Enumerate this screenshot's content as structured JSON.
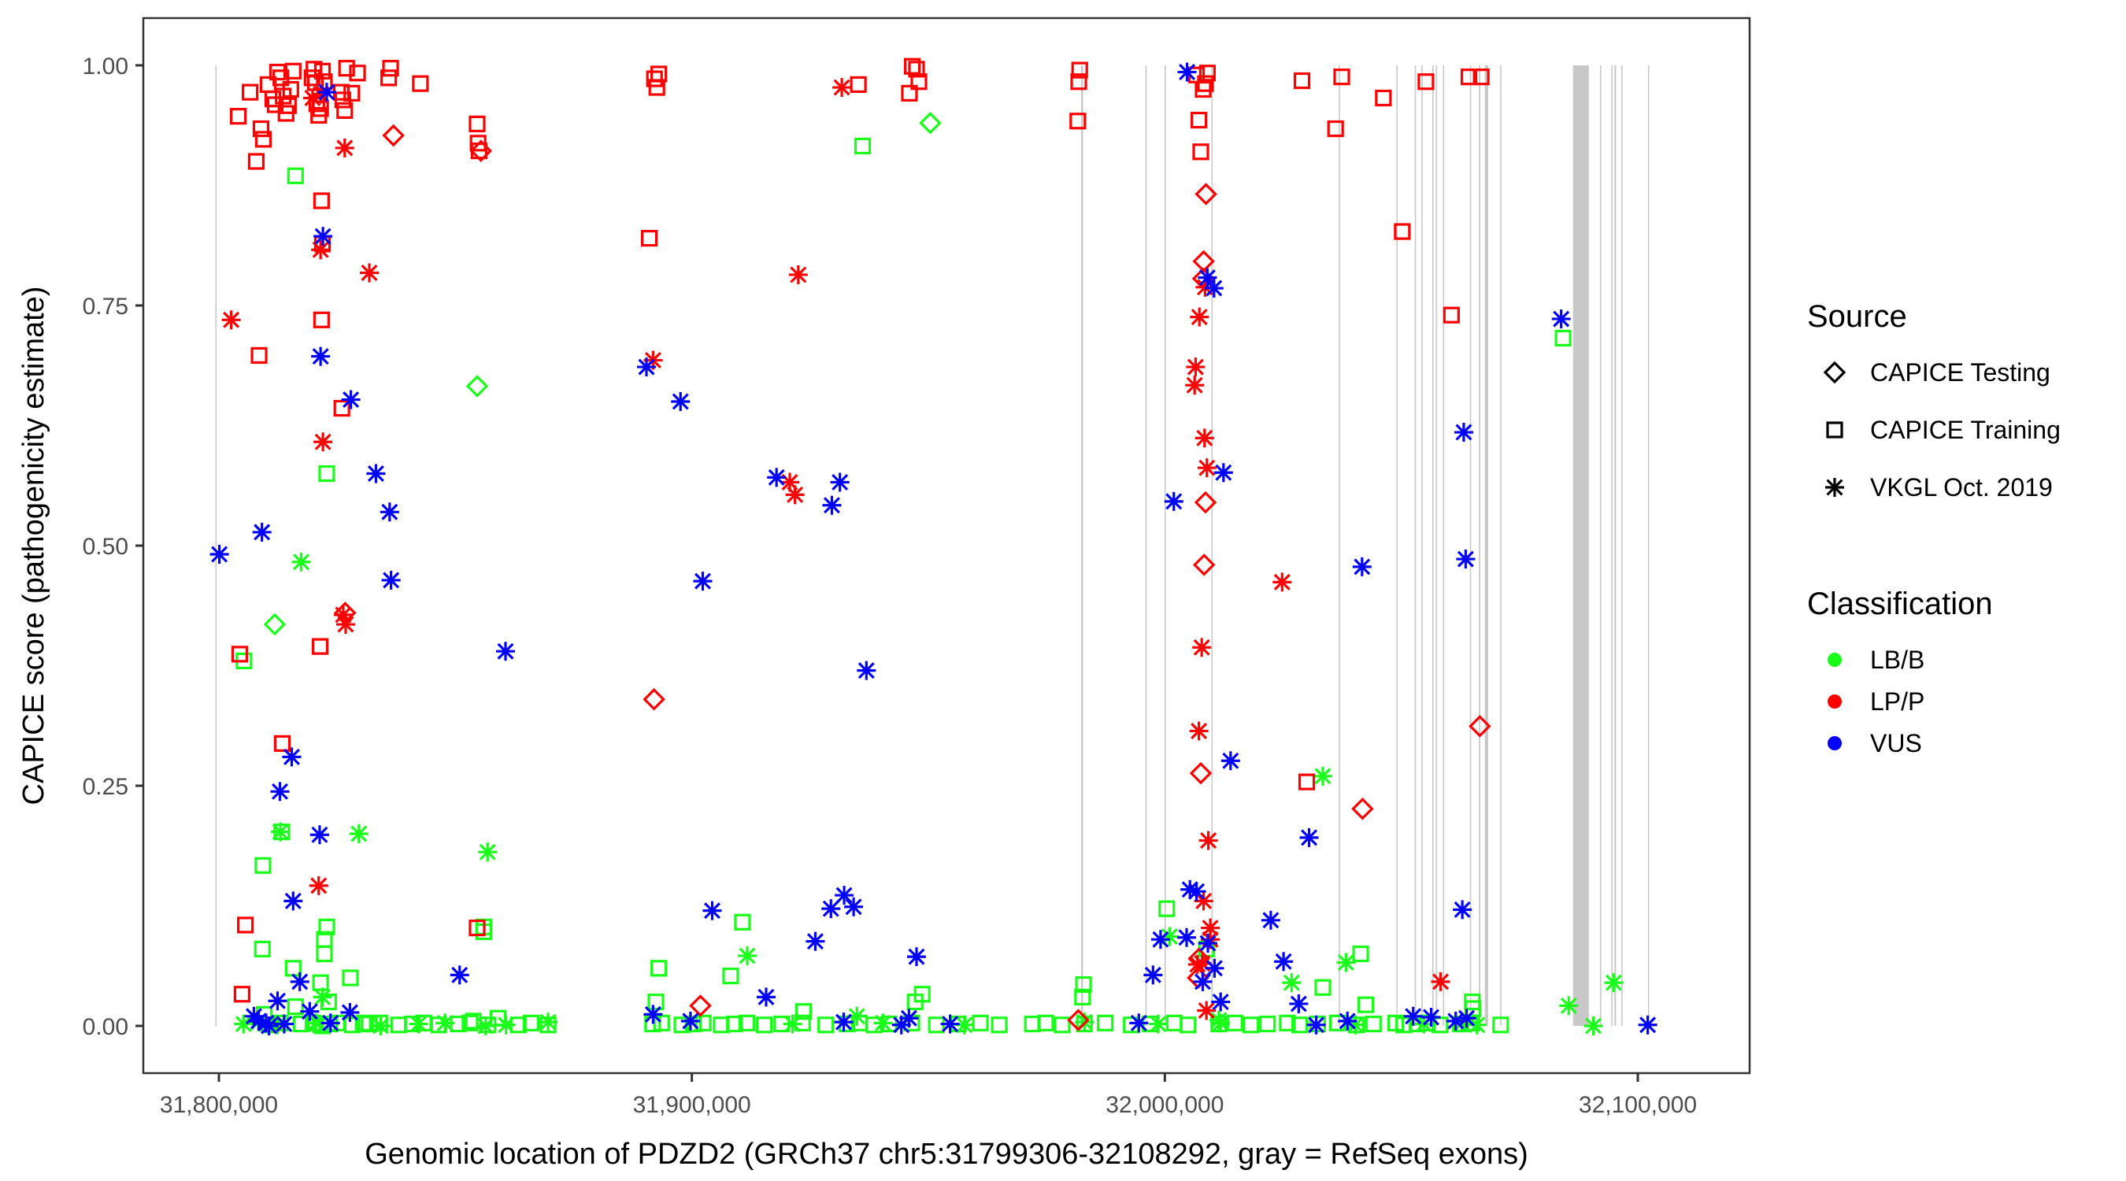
{
  "chart_data": {
    "type": "scatter",
    "title": "",
    "xlabel": "Genomic location of PDZD2 (GRCh37 chr5:31799306-32108292, gray = RefSeq exons)",
    "ylabel": "CAPICE score (pathogenicity estimate)",
    "xlim": [
      31784000,
      32125000
    ],
    "ylim": [
      -0.0975,
      1.0975
    ],
    "grid": false,
    "x_ticks": [
      31800000,
      31900000,
      32000000,
      32100000
    ],
    "x_tick_labels": [
      "31,800,000",
      "31,900,000",
      "32,000,000",
      "32,100,000"
    ],
    "y_ticks": [
      0,
      0.25,
      0.5,
      0.75,
      1.0
    ],
    "y_tick_labels": [
      "0.00",
      "0.25",
      "0.50",
      "0.75",
      "1.00"
    ],
    "exon_range": [
      31799306,
      32108292
    ],
    "exons": [
      [
        31799250,
        31799450
      ],
      [
        31982300,
        31982700
      ],
      [
        31995900,
        31996100
      ],
      [
        31999950,
        32000200
      ],
      [
        32009850,
        32010100
      ],
      [
        32036750,
        32036950
      ],
      [
        32048950,
        32049150
      ],
      [
        32052850,
        32053050
      ],
      [
        32054250,
        32054450
      ],
      [
        32056550,
        32056800
      ],
      [
        32057300,
        32057500
      ],
      [
        32058800,
        32059000
      ],
      [
        32064500,
        32064700
      ],
      [
        32066400,
        32066700
      ],
      [
        32067650,
        32068350
      ],
      [
        32070900,
        32071100
      ],
      [
        32086300,
        32089650
      ],
      [
        32092000,
        32092200
      ],
      [
        32094400,
        32094600
      ],
      [
        32095050,
        32095400
      ],
      [
        32096500,
        32096700
      ],
      [
        32102150,
        32102400
      ]
    ],
    "legend": {
      "placement": "right",
      "source_title": "Source",
      "source_entries": [
        {
          "label": "CAPICE Testing",
          "shape": "diamond"
        },
        {
          "label": "CAPICE Training",
          "shape": "square"
        },
        {
          "label": "VKGL Oct. 2019",
          "shape": "asterisk"
        }
      ],
      "class_title": "Classification",
      "class_entries": [
        {
          "label": "LB/B",
          "color": "#1aff1a"
        },
        {
          "label": "LP/P",
          "color": "#ff0000"
        },
        {
          "label": "VUS",
          "color": "#0000ff"
        }
      ]
    },
    "series": [
      {
        "name": "LP/P CAPICE Training",
        "class": "LP/P",
        "shape": "square",
        "color": "#ff0000",
        "x": [
          31804100,
          31806600,
          31808900,
          31809400,
          31810400,
          31811400,
          31811900,
          31812400,
          31813100,
          31813600,
          31814200,
          31814700,
          31815200,
          31815700,
          31819700,
          31820100,
          31820400,
          31820700,
          31821100,
          31821500,
          31821900,
          31822300,
          31825900,
          31826200,
          31826600,
          31827000,
          31828100,
          31829300,
          31835900,
          31836300,
          31842600,
          31854600,
          31854800,
          31855000,
          31891000,
          31892100,
          31892600,
          31893000,
          31935200,
          31946000,
          31946600,
          31947500,
          31948000,
          31981600,
          31981800,
          31982000,
          32006700,
          32007200,
          32007600,
          32008100,
          32008600,
          32009000,
          32029000,
          32036100,
          32037400,
          32046200,
          32050200,
          32055200,
          32060600,
          32064300,
          32066900,
          32030000,
          31808500,
          31804400,
          31826000,
          31821900,
          31821700,
          31805600,
          31821700,
          31807900,
          31813400,
          31821400,
          31804900,
          31854600
        ],
        "y": [
          0.947,
          0.972,
          0.934,
          0.923,
          0.98,
          0.965,
          0.959,
          0.993,
          0.987,
          0.968,
          0.95,
          0.958,
          0.975,
          0.994,
          0.987,
          0.996,
          0.982,
          0.96,
          0.948,
          0.955,
          0.994,
          0.983,
          0.972,
          0.964,
          0.953,
          0.997,
          0.971,
          0.992,
          0.987,
          0.997,
          0.981,
          0.939,
          0.919,
          0.911,
          0.82,
          0.986,
          0.977,
          0.991,
          0.98,
          0.971,
          0.999,
          0.996,
          0.983,
          0.942,
          0.983,
          0.995,
          0.99,
          0.943,
          0.91,
          0.975,
          0.981,
          0.992,
          0.984,
          0.934,
          0.988,
          0.966,
          0.827,
          0.983,
          0.74,
          0.988,
          0.988,
          0.254,
          0.698,
          0.387,
          0.643,
          0.814,
          0.735,
          0.105,
          0.859,
          0.9,
          0.294,
          0.395,
          0.033,
          0.102
        ]
      },
      {
        "name": "LP/P VKGL Oct. 2019",
        "class": "LP/P",
        "shape": "asterisk",
        "color": "#ff0000",
        "x": [
          31802600,
          31819800,
          31821500,
          31822000,
          31826600,
          31826300,
          31826800,
          31831800,
          31821100,
          31821600,
          31891800,
          31922500,
          31931700,
          31921800,
          31920700,
          32006300,
          32006500,
          32007300,
          32008400,
          32008900,
          32009200,
          32007800,
          32008500,
          32007200,
          32006900,
          32024800,
          32009600,
          32008200,
          32009600,
          32007900,
          32058300,
          32008800
        ],
        "y": [
          0.735,
          0.966,
          0.808,
          0.608,
          0.914,
          0.428,
          0.418,
          0.784,
          0.146,
          0.97,
          0.693,
          0.782,
          0.977,
          0.553,
          0.566,
          0.667,
          0.686,
          0.738,
          0.612,
          0.581,
          0.193,
          0.394,
          0.769,
          0.307,
          0.064,
          0.462,
          0.102,
          0.13,
          0.09,
          0.065,
          0.046,
          0.016
        ]
      },
      {
        "name": "LP/P CAPICE Testing",
        "class": "LP/P",
        "shape": "diamond",
        "color": "#ff0000",
        "x": [
          31836900,
          31855400,
          31826700,
          31892000,
          32008700,
          32008200,
          32008100,
          32008600,
          32008300,
          32007600,
          32041800,
          32066600,
          31901800,
          31981700,
          32007200,
          32007000
        ],
        "y": [
          0.927,
          0.911,
          0.43,
          0.34,
          0.866,
          0.796,
          0.778,
          0.545,
          0.48,
          0.263,
          0.226,
          0.312,
          0.021,
          0.006,
          0.07,
          0.05
        ]
      },
      {
        "name": "LB/B CAPICE Training",
        "class": "LB/B",
        "shape": "square",
        "color": "#1aff1a",
        "x": [
          31805300,
          31809300,
          31816200,
          31822800,
          31936100,
          32084200,
          31813300,
          31822800,
          31809200,
          31822300,
          31815700,
          31822300,
          31821500,
          31816200,
          31827800,
          31856000,
          31856000,
          31910700,
          31908200,
          31893000,
          31892400,
          31923600,
          31947200,
          31948700,
          32000400,
          31982800,
          31982600,
          32041400,
          32033400,
          32065000,
          31809600,
          31823200,
          31853800,
          31821900,
          31830500,
          31830800,
          31810600,
          31813000,
          31817400,
          31819900,
          31821500,
          31823400,
          31825000,
          31828200,
          31831800,
          31834000,
          31838000,
          31840900,
          31843300,
          31846500,
          31850600,
          31853100,
          31856900,
          31859000,
          31863300,
          31866000,
          31869600,
          31891700,
          31893600,
          31897900,
          31900300,
          31902400,
          31906200,
          31909000,
          31911600,
          31915300,
          31919000,
          31923400,
          31928300,
          31932800,
          31935400,
          31938500,
          31941700,
          31946500,
          31951700,
          31956300,
          31961000,
          31965000,
          31972000,
          31974800,
          31978300,
          31983000,
          31987400,
          31992900,
          31996900,
          32002000,
          32004900,
          32011400,
          32014800,
          32018200,
          32021700,
          32025900,
          32028500,
          32032300,
          32036500,
          32040500,
          32044100,
          32048800,
          32050500,
          32053300,
          32055500,
          32058200,
          32062500,
          32064800,
          32071000,
          32065100,
          32042500,
          32008800
        ],
        "y": [
          0.38,
          0.167,
          0.885,
          0.575,
          0.916,
          0.716,
          0.202,
          0.103,
          0.08,
          0.09,
          0.06,
          0.075,
          0.045,
          0.02,
          0.05,
          0.103,
          0.098,
          0.108,
          0.052,
          0.06,
          0.025,
          0.015,
          0.025,
          0.033,
          0.122,
          0.043,
          0.03,
          0.075,
          0.04,
          0.025,
          0.012,
          0.025,
          0.005,
          0.0,
          0.002,
          0.003,
          0.001,
          0.003,
          0.002,
          0.003,
          0.001,
          0.002,
          0.003,
          0.001,
          0.002,
          0.003,
          0.001,
          0.002,
          0.003,
          0.001,
          0.002,
          0.003,
          0.001,
          0.008,
          0.001,
          0.003,
          0.001,
          0.002,
          0.003,
          0.001,
          0.002,
          0.003,
          0.001,
          0.002,
          0.003,
          0.001,
          0.002,
          0.003,
          0.001,
          0.002,
          0.003,
          0.001,
          0.002,
          0.003,
          0.001,
          0.002,
          0.003,
          0.001,
          0.002,
          0.003,
          0.001,
          0.002,
          0.003,
          0.001,
          0.002,
          0.003,
          0.001,
          0.002,
          0.003,
          0.001,
          0.002,
          0.003,
          0.001,
          0.002,
          0.003,
          0.001,
          0.002,
          0.003,
          0.001,
          0.002,
          0.003,
          0.001,
          0.002,
          0.003,
          0.001,
          0.018,
          0.022,
          0.08
        ]
      },
      {
        "name": "LB/B VKGL Oct. 2019",
        "class": "LB/B",
        "shape": "asterisk",
        "color": "#1aff1a",
        "x": [
          31817400,
          31856800,
          31813000,
          31821900,
          31829600,
          31834200,
          31856400,
          31911700,
          31934900,
          32033400,
          32038300,
          32001000,
          32026800,
          32085400,
          32094900,
          32090600,
          31805200,
          31808400,
          31812400,
          31820500,
          31842200,
          31860700,
          31869600,
          31921300,
          31940400,
          31957600,
          31983000,
          31998600,
          32011800,
          32040300,
          32054800,
          32062800,
          32066000,
          32011400,
          31847800
        ],
        "y": [
          0.483,
          0.181,
          0.202,
          0.03,
          0.2,
          0.0,
          0.0,
          0.073,
          0.01,
          0.26,
          0.066,
          0.093,
          0.045,
          0.021,
          0.045,
          0.0,
          0.002,
          0.004,
          0.001,
          0.003,
          0.002,
          0.001,
          0.004,
          0.002,
          0.003,
          0.001,
          0.004,
          0.002,
          0.003,
          0.001,
          0.002,
          0.003,
          0.001,
          0.006,
          0.003
        ]
      },
      {
        "name": "LB/B CAPICE Testing",
        "class": "LB/B",
        "shape": "diamond",
        "color": "#1aff1a",
        "x": [
          31811800,
          31854600,
          31950400
        ],
        "y": [
          0.418,
          0.666,
          0.94
        ]
      },
      {
        "name": "VUS VKGL Oct. 2019",
        "class": "VUS",
        "shape": "asterisk",
        "color": "#0000ff",
        "x": [
          31800100,
          31809100,
          31821500,
          31822000,
          31822800,
          31827900,
          31833200,
          31836100,
          31836400,
          31860600,
          31815400,
          31812900,
          31815700,
          31821300,
          31817100,
          31808400,
          31812400,
          31819200,
          31827700,
          31850900,
          31890400,
          31897600,
          31902300,
          31917900,
          31929600,
          31931300,
          31936900,
          31904300,
          31926100,
          31929400,
          31932200,
          31934200,
          31947500,
          31945900,
          32004700,
          32001900,
          32009000,
          32010400,
          32012400,
          32013900,
          32022400,
          32030500,
          32025100,
          32041700,
          32063200,
          32063600,
          32062900,
          32083800,
          31997500,
          31999100,
          32004600,
          32005300,
          32006700,
          32008000,
          32009100,
          32010500,
          32011800,
          32028300,
          32032000,
          32038600,
          32052500,
          32056300,
          32061500,
          32063800,
          32102100,
          31891800,
          31899700,
          31915700,
          31932100,
          31944300,
          31954600,
          31994500,
          31807400,
          31810000,
          31810600,
          31813800,
          31823600
        ],
        "y": [
          0.491,
          0.514,
          0.697,
          0.822,
          0.972,
          0.652,
          0.575,
          0.535,
          0.464,
          0.39,
          0.28,
          0.244,
          0.13,
          0.199,
          0.046,
          0.005,
          0.026,
          0.015,
          0.014,
          0.053,
          0.686,
          0.65,
          0.463,
          0.571,
          0.542,
          0.566,
          0.37,
          0.12,
          0.088,
          0.122,
          0.136,
          0.124,
          0.072,
          0.008,
          0.993,
          0.546,
          0.779,
          0.768,
          0.576,
          0.276,
          0.11,
          0.196,
          0.067,
          0.478,
          0.618,
          0.486,
          0.121,
          0.736,
          0.053,
          0.09,
          0.092,
          0.142,
          0.14,
          0.046,
          0.086,
          0.06,
          0.025,
          0.023,
          0.001,
          0.005,
          0.01,
          0.009,
          0.005,
          0.008,
          0.001,
          0.012,
          0.005,
          0.03,
          0.004,
          0.001,
          0.002,
          0.003,
          0.01,
          0.003,
          0.0,
          0.002,
          0.003
        ]
      }
    ]
  }
}
